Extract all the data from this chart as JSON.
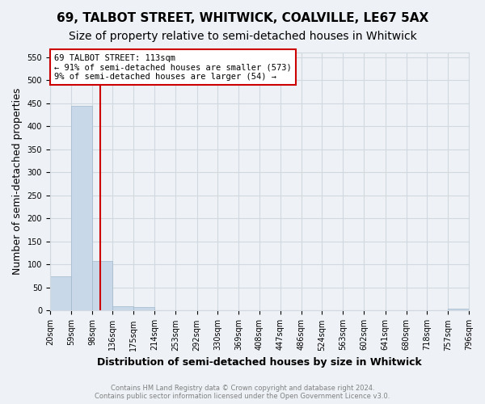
{
  "title": "69, TALBOT STREET, WHITWICK, COALVILLE, LE67 5AX",
  "subtitle": "Size of property relative to semi-detached houses in Whitwick",
  "xlabel": "Distribution of semi-detached houses by size in Whitwick",
  "ylabel": "Number of semi-detached properties",
  "bin_edges": [
    20,
    59,
    98,
    136,
    175,
    214,
    253,
    292,
    330,
    369,
    408,
    447,
    486,
    524,
    563,
    602,
    641,
    680,
    718,
    757,
    796
  ],
  "bar_heights": [
    75,
    445,
    108,
    10,
    8,
    0,
    0,
    0,
    0,
    0,
    0,
    0,
    0,
    0,
    0,
    0,
    0,
    0,
    0,
    5
  ],
  "bar_color": "#c8d8e8",
  "bar_edgecolor": "#a0b8cc",
  "property_size": 113,
  "red_line_color": "#cc0000",
  "annotation_text_line1": "69 TALBOT STREET: 113sqm",
  "annotation_text_line2": "← 91% of semi-detached houses are smaller (573)",
  "annotation_text_line3": "9% of semi-detached houses are larger (54) →",
  "annotation_box_color": "#ffffff",
  "annotation_box_edgecolor": "#cc0000",
  "ylim": [
    0,
    560
  ],
  "yticks": [
    0,
    50,
    100,
    150,
    200,
    250,
    300,
    350,
    400,
    450,
    500,
    550
  ],
  "footer_line1": "Contains HM Land Registry data © Crown copyright and database right 2024.",
  "footer_line2": "Contains public sector information licensed under the Open Government Licence v3.0.",
  "background_color": "#eef2f6",
  "grid_color": "#d0d8e0",
  "tick_label_fontsize": 7,
  "axis_label_fontsize": 9,
  "title_fontsize": 11,
  "subtitle_fontsize": 10
}
